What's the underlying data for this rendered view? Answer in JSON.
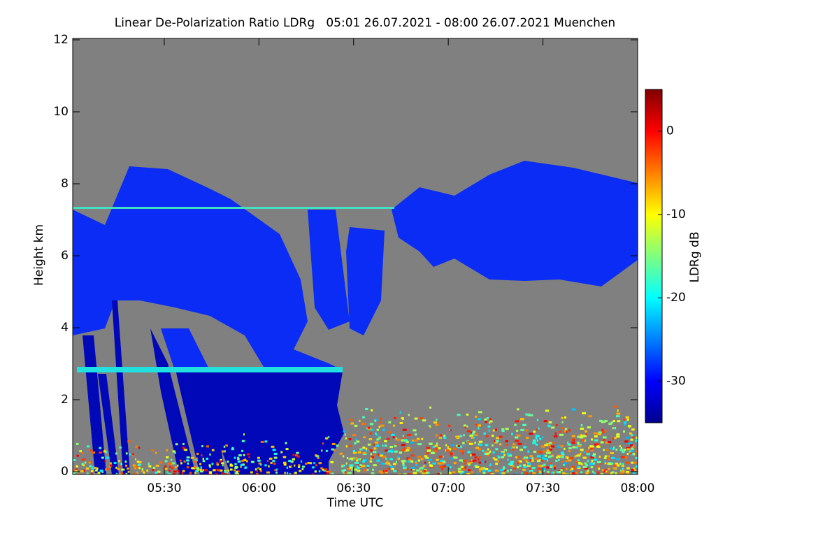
{
  "chart_data": {
    "type": "heatmap",
    "title": "Linear De-Polarization Ratio LDRg   05:01 26.07.2021 - 08:00 26.07.2021 Muenchen",
    "xlabel": "Time UTC",
    "ylabel": "Height km",
    "xlim": [
      "05:01",
      "08:00"
    ],
    "xticks": [
      "05:30",
      "06:00",
      "06:30",
      "07:00",
      "07:30",
      "08:00"
    ],
    "ylim": [
      0,
      12
    ],
    "yticks": [
      0,
      2,
      4,
      6,
      8,
      10,
      12
    ],
    "colorbar": {
      "label": "LDRg dB",
      "clim": [
        -35,
        5
      ],
      "ticks": [
        0,
        -10,
        -20,
        -30
      ],
      "colormap": "jet"
    }
  }
}
